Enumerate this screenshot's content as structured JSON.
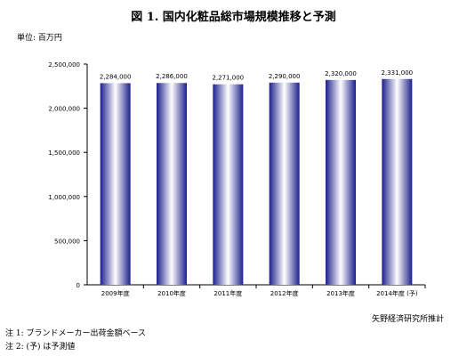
{
  "chart_data": {
    "type": "bar",
    "title": "図 1. 国内化粧品総市場規模推移と予測",
    "unit_label": "単位: 百万円",
    "categories": [
      "2009年度",
      "2010年度",
      "2011年度",
      "2012年度",
      "2013年度",
      "2014年度 (予)"
    ],
    "values": [
      2284000,
      2286000,
      2271000,
      2290000,
      2320000,
      2331000
    ],
    "data_labels": [
      "2,284,000",
      "2,286,000",
      "2,271,000",
      "2,290,000",
      "2,320,000",
      "2,331,000"
    ],
    "yticks": [
      0,
      500000,
      1000000,
      1500000,
      2000000,
      2500000
    ],
    "ytick_labels": [
      "0",
      "500,000",
      "1,000,000",
      "1,500,000",
      "2,000,000",
      "2,500,000"
    ],
    "ylim": [
      0,
      2500000
    ],
    "grid": false,
    "legend": "none",
    "bar_gradient": [
      "#ffffff",
      "#1c1f8c"
    ]
  },
  "source": "矢野経済研究所推計",
  "notes": [
    "注 1: ブランドメーカー出荷金額ベース",
    "注 2: (予) は予測値"
  ]
}
